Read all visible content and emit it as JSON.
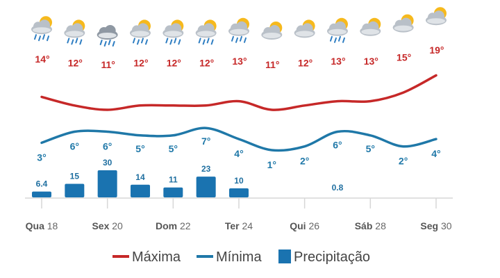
{
  "chart_data": {
    "type": "line",
    "x": [
      "18",
      "19",
      "20",
      "21",
      "22",
      "23",
      "24",
      "25",
      "26",
      "27",
      "28",
      "29",
      "30"
    ],
    "x_tick_labels": [
      {
        "index": 0,
        "day": "Qua",
        "num": "18"
      },
      {
        "index": 2,
        "day": "Sex",
        "num": "20"
      },
      {
        "index": 4,
        "day": "Dom",
        "num": "22"
      },
      {
        "index": 6,
        "day": "Ter",
        "num": "24"
      },
      {
        "index": 8,
        "day": "Qui",
        "num": "26"
      },
      {
        "index": 10,
        "day": "Sáb",
        "num": "28"
      },
      {
        "index": 12,
        "day": "Seg",
        "num": "30"
      }
    ],
    "series": [
      {
        "name": "Máxima",
        "key": "max",
        "color": "#c62828",
        "values": [
          14,
          12,
          11,
          12,
          12,
          12,
          13,
          11,
          12,
          13,
          13,
          15,
          19
        ],
        "labels": [
          "14°",
          "12°",
          "11°",
          "12°",
          "12°",
          "12°",
          "13°",
          "11°",
          "12°",
          "13°",
          "13°",
          "15°",
          "19°"
        ]
      },
      {
        "name": "Mínima",
        "key": "min",
        "color": "#1f78a8",
        "values": [
          3,
          6,
          6,
          5,
          5,
          7,
          4,
          1,
          2,
          6,
          5,
          2,
          4
        ],
        "labels": [
          "3°",
          "6°",
          "6°",
          "5°",
          "5°",
          "7°",
          "4°",
          "1°",
          "2°",
          "6°",
          "5°",
          "2°",
          "4°"
        ]
      },
      {
        "name": "Precipitação",
        "key": "precip",
        "type": "bar",
        "color": "#1a73b0",
        "values": [
          6.4,
          15,
          30,
          14,
          11,
          23,
          10,
          null,
          null,
          0.8,
          null,
          null,
          null
        ],
        "labels": [
          "6.4",
          "15",
          "30",
          "14",
          "11",
          "23",
          "10",
          "",
          "",
          "0.8",
          "",
          "",
          ""
        ]
      }
    ],
    "weather_icons": [
      "sun-cloud-rain-icon",
      "sun-cloud-rain-icon",
      "cloud-rain-icon",
      "sun-cloud-rain-icon",
      "sun-cloud-rain-icon",
      "sun-cloud-rain-icon",
      "sun-cloud-rain-icon",
      "sun-cloud-icon",
      "sun-cloud-icon",
      "sun-cloud-rain-icon",
      "sun-cloud-icon",
      "sun-cloud-icon",
      "sun-cloud-icon"
    ],
    "legend_position": "bottom",
    "grid": false
  }
}
